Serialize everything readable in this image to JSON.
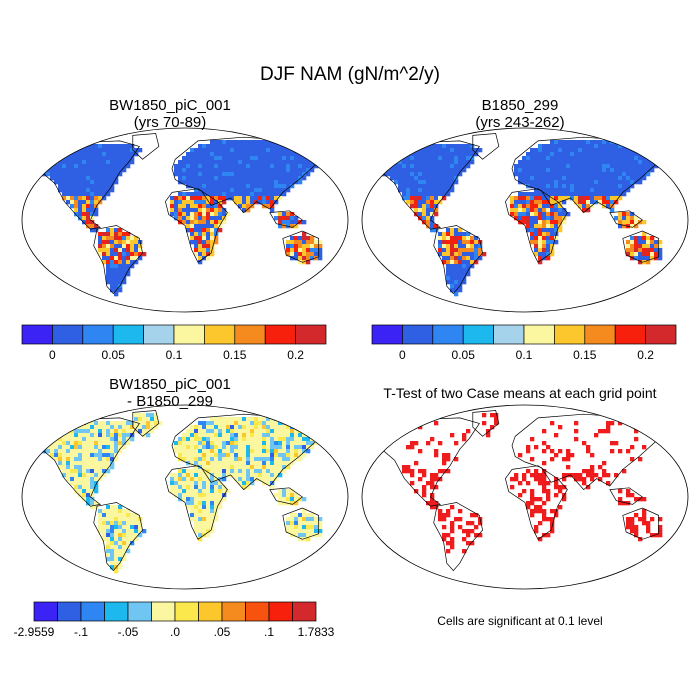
{
  "title": "DJF NAM (gN/m^2/y)",
  "panels": {
    "case1": {
      "title_line1": "BW1850_piC_001",
      "title_line2": "(yrs 70-89)"
    },
    "case2": {
      "title_line1": "B1850_299",
      "title_line2": "(yrs 243-262)"
    },
    "diff": {
      "title_line1": "BW1850_piC_001",
      "title_line2": "- B1850_299"
    },
    "ttest": {
      "title": "T-Test of two Case means at each grid point",
      "note": "Cells are significant at 0.1 level"
    }
  },
  "chart_data": [
    {
      "type": "heatmap",
      "title": "BW1850_piC_001 (yrs 70-89)",
      "colorbar": {
        "colors": [
          "#3b22f5",
          "#2f5fe3",
          "#2f86f3",
          "#1cb8ee",
          "#a5d3ec",
          "#fbf7a0",
          "#fbc72d",
          "#f58a1e",
          "#f7200c",
          "#d4292c"
        ],
        "tick_labels": [
          "0",
          "0.05",
          "0.1",
          "0.15",
          "0.2"
        ]
      }
    },
    {
      "type": "heatmap",
      "title": "B1850_299 (yrs 243-262)",
      "colorbar": {
        "colors": [
          "#3b22f5",
          "#2f5fe3",
          "#2f86f3",
          "#1cb8ee",
          "#a5d3ec",
          "#fbf7a0",
          "#fbc72d",
          "#f58a1e",
          "#f7200c",
          "#d4292c"
        ],
        "tick_labels": [
          "0",
          "0.05",
          "0.1",
          "0.15",
          "0.2"
        ]
      }
    },
    {
      "type": "heatmap",
      "title": "BW1850_piC_001 - B1850_299",
      "colorbar": {
        "colors": [
          "#3b22f5",
          "#2f5fe3",
          "#2f86f3",
          "#1cb8ee",
          "#6fc6f2",
          "#fbf7a0",
          "#fbe84c",
          "#fbc72d",
          "#f58a1e",
          "#f7520e",
          "#f7200c",
          "#d4292c"
        ],
        "tick_labels": [
          "-2.9559",
          "-.1",
          "-.05",
          ".0",
          ".05",
          ".1",
          "1.7833"
        ]
      }
    },
    {
      "type": "heatmap",
      "title": "T-Test of two Case means at each grid point",
      "significance_color": "#ee1c1c"
    }
  ]
}
